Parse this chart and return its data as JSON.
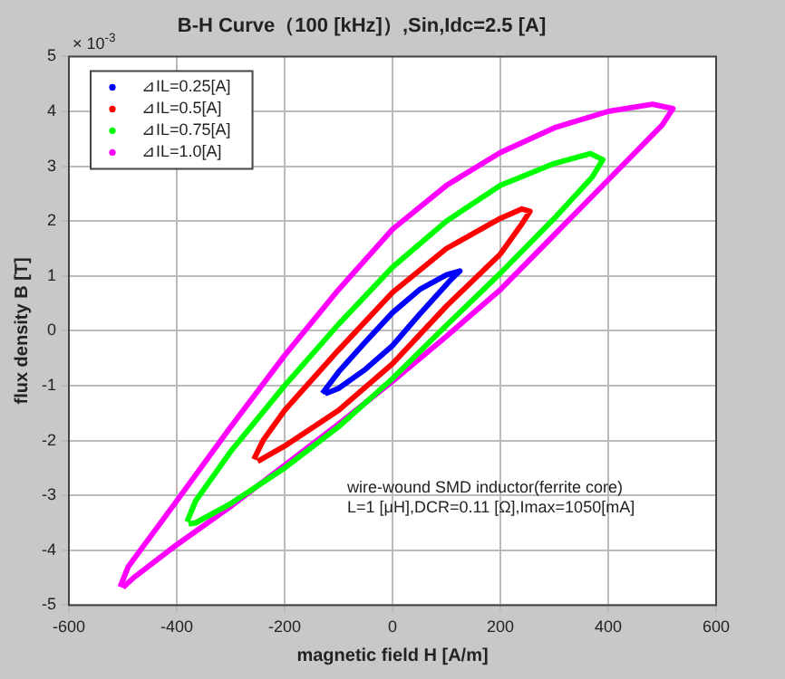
{
  "chart_data": {
    "type": "line",
    "title": "B-H Curve（100 [kHz]）,Sin,Idc=2.5 [A]",
    "xlabel": "magnetic field H [A/m]",
    "ylabel": "flux density B [T]",
    "xlim": [
      -600,
      600
    ],
    "xticks": [
      -600,
      -400,
      -200,
      0,
      200,
      400,
      600
    ],
    "ylim": [
      -5,
      5
    ],
    "yticks": [
      -5,
      -4,
      -3,
      -2,
      -1,
      0,
      1,
      2,
      3,
      4,
      5
    ],
    "grid": true,
    "legend": "top left",
    "line_style": "solid",
    "annotations": [
      "× 10$^{-3}$",
      "wire-wound SMD inductor(ferrite core)",
      "L=1 [μH],DCR=0.11 [Ω],Imax=1050[mA]"
    ],
    "series": [
      {
        "name": "⊿IL=0.25[A]",
        "color": "#0000ff",
        "x": [
          -130,
          -100,
          -50,
          0,
          50,
          100,
          125,
          110,
          50,
          0,
          -50,
          -100,
          -125
        ],
        "values": [
          -1.14,
          -0.75,
          -0.2,
          0.33,
          0.75,
          1.02,
          1.09,
          0.95,
          0.3,
          -0.27,
          -0.7,
          -1.05,
          -1.15
        ]
      },
      {
        "name": "⊿IL=0.5[A]",
        "color": "#ff0000",
        "x": [
          -257,
          -240,
          -200,
          -100,
          0,
          100,
          200,
          240,
          255,
          240,
          200,
          100,
          0,
          -100,
          -200,
          -250
        ],
        "values": [
          -2.34,
          -2.0,
          -1.45,
          -0.35,
          0.7,
          1.5,
          2.05,
          2.22,
          2.18,
          1.95,
          1.4,
          0.45,
          -0.6,
          -1.45,
          -2.1,
          -2.38
        ]
      },
      {
        "name": "⊿IL=0.75[A]",
        "color": "#00ff00",
        "x": [
          -381,
          -365,
          -300,
          -200,
          -100,
          0,
          100,
          200,
          300,
          367,
          390,
          370,
          300,
          200,
          100,
          0,
          -100,
          -200,
          -300,
          -365,
          -378
        ],
        "values": [
          -3.48,
          -3.1,
          -2.2,
          -1.0,
          0.12,
          1.16,
          2.0,
          2.65,
          3.05,
          3.23,
          3.12,
          2.8,
          2.05,
          1.05,
          0.1,
          -0.87,
          -1.75,
          -2.5,
          -3.15,
          -3.5,
          -3.52
        ]
      },
      {
        "name": "⊿IL=1.0[A]",
        "color": "#ff00ff",
        "x": [
          -505,
          -490,
          -400,
          -300,
          -200,
          -100,
          0,
          100,
          200,
          300,
          400,
          482,
          520,
          500,
          400,
          300,
          200,
          100,
          0,
          -100,
          -200,
          -300,
          -400,
          -480,
          -500
        ],
        "values": [
          -4.67,
          -4.3,
          -3.1,
          -1.75,
          -0.45,
          0.75,
          1.85,
          2.65,
          3.25,
          3.7,
          4.0,
          4.13,
          4.05,
          3.75,
          2.75,
          1.75,
          0.75,
          -0.1,
          -0.92,
          -1.7,
          -2.45,
          -3.2,
          -3.9,
          -4.5,
          -4.68
        ]
      }
    ]
  }
}
